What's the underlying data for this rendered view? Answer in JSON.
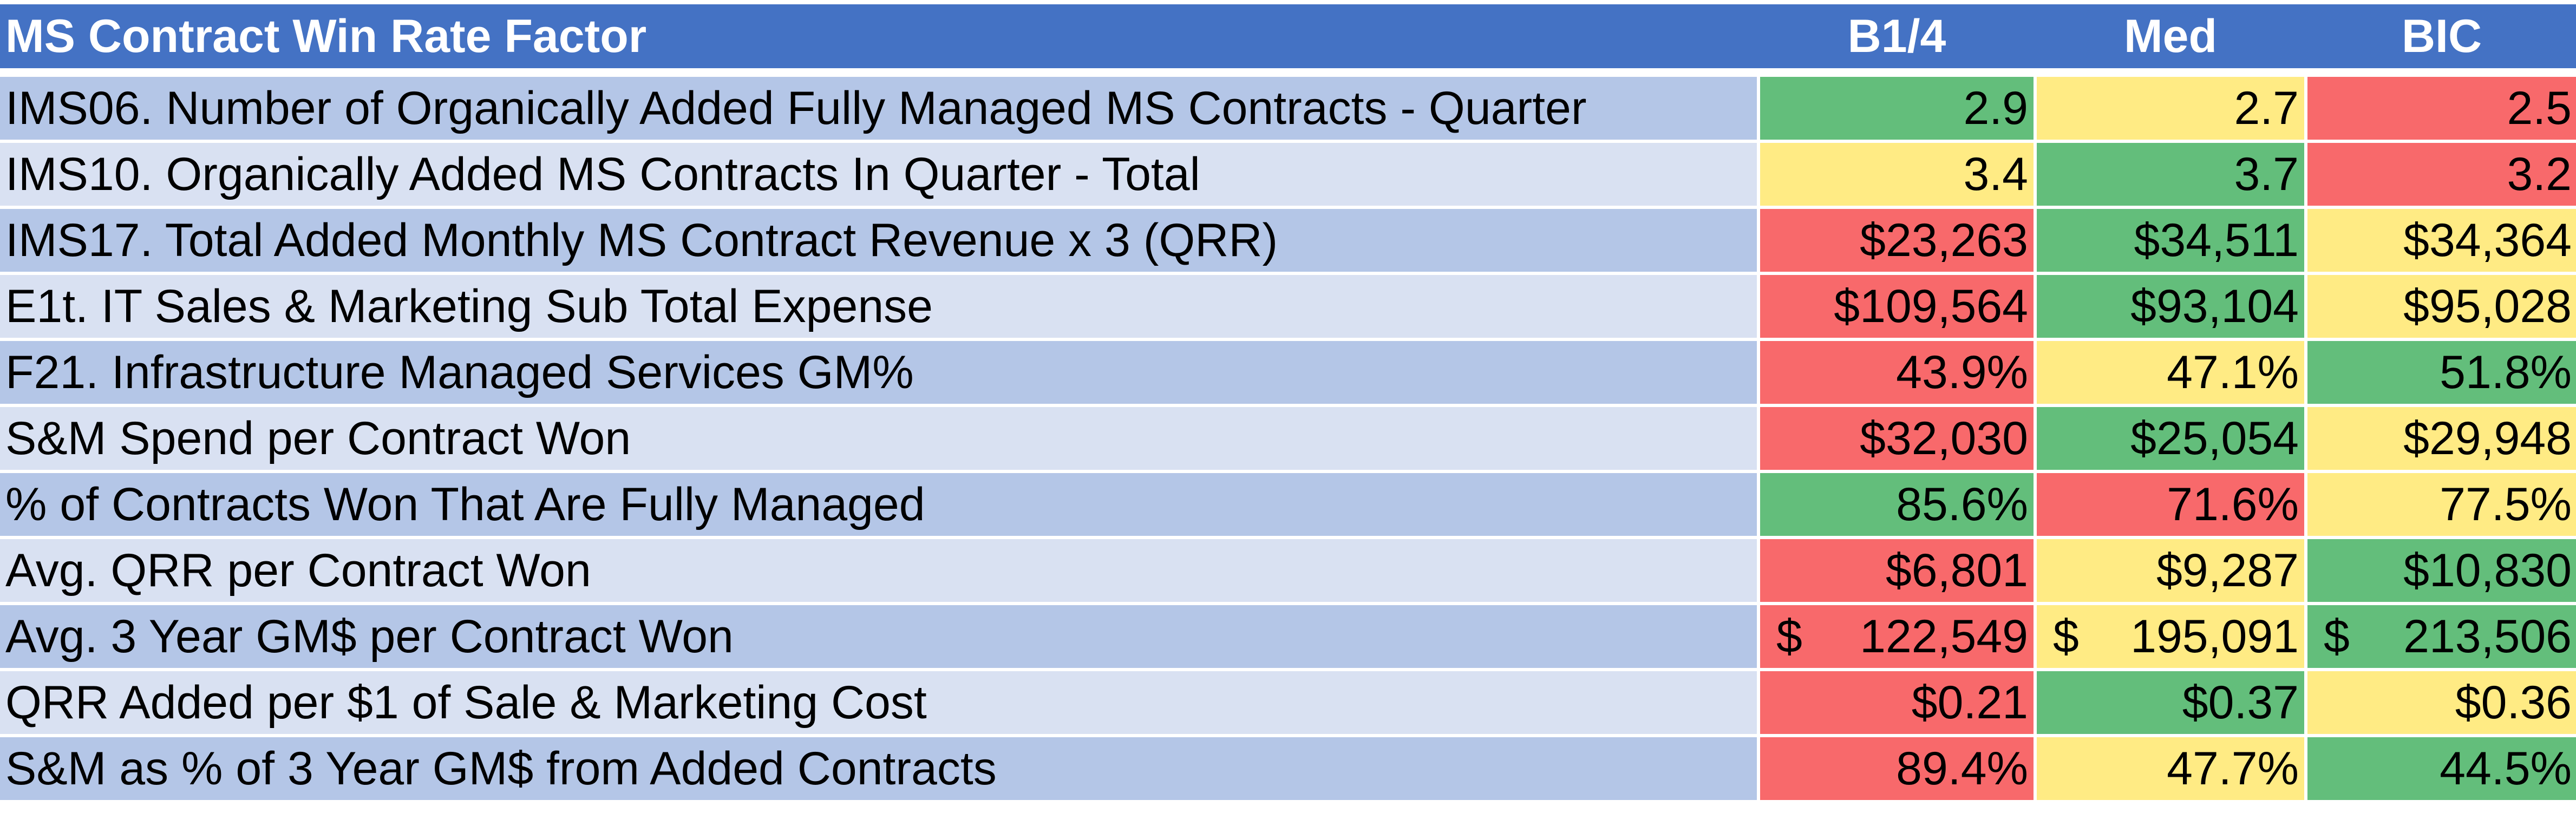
{
  "colors": {
    "header": "#4472C4",
    "row_dark": "#B4C6E7",
    "row_light": "#D9E1F2",
    "green": "#63BE7B",
    "yellow": "#FFEB84",
    "red": "#F8696B"
  },
  "header": {
    "title": "MS Contract Win Rate Factor",
    "cols": [
      "B1/4",
      "Med",
      "BIC"
    ]
  },
  "rows": [
    {
      "label": "IMS06. Number of Organically Added Fully Managed MS Contracts - Quarter",
      "values": [
        "2.9",
        "2.7",
        "2.5"
      ],
      "status": [
        "green",
        "yellow",
        "red"
      ]
    },
    {
      "label": "IMS10. Organically Added MS Contracts In Quarter - Total",
      "values": [
        "3.4",
        "3.7",
        "3.2"
      ],
      "status": [
        "yellow",
        "green",
        "red"
      ]
    },
    {
      "label": "IMS17. Total Added Monthly MS Contract Revenue x 3 (QRR)",
      "values": [
        "$23,263",
        "$34,511",
        "$34,364"
      ],
      "status": [
        "red",
        "green",
        "yellow"
      ]
    },
    {
      "label": "E1t. IT Sales & Marketing Sub Total Expense",
      "values": [
        "$109,564",
        "$93,104",
        "$95,028"
      ],
      "status": [
        "red",
        "green",
        "yellow"
      ]
    },
    {
      "label": "F21. Infrastructure Managed Services GM%",
      "values": [
        "43.9%",
        "47.1%",
        "51.8%"
      ],
      "status": [
        "red",
        "yellow",
        "green"
      ]
    },
    {
      "label": "S&M Spend per Contract Won",
      "values": [
        "$32,030",
        "$25,054",
        "$29,948"
      ],
      "status": [
        "red",
        "green",
        "yellow"
      ]
    },
    {
      "label": "% of Contracts Won That Are Fully Managed",
      "values": [
        "85.6%",
        "71.6%",
        "77.5%"
      ],
      "status": [
        "green",
        "red",
        "yellow"
      ]
    },
    {
      "label": "Avg. QRR per Contract Won",
      "values": [
        "$6,801",
        "$9,287",
        "$10,830"
      ],
      "status": [
        "red",
        "yellow",
        "green"
      ]
    },
    {
      "label": "Avg. 3 Year GM$ per Contract Won",
      "values": [
        "122,549",
        "195,091",
        "213,506"
      ],
      "currency": "$",
      "status": [
        "red",
        "yellow",
        "green"
      ]
    },
    {
      "label": "QRR Added per $1 of Sale & Marketing Cost",
      "values": [
        "$0.21",
        "$0.37",
        "$0.36"
      ],
      "status": [
        "red",
        "green",
        "yellow"
      ]
    },
    {
      "label": "S&M as % of 3 Year GM$ from Added Contracts",
      "values": [
        "89.4%",
        "47.7%",
        "44.5%"
      ],
      "status": [
        "red",
        "yellow",
        "green"
      ]
    }
  ]
}
